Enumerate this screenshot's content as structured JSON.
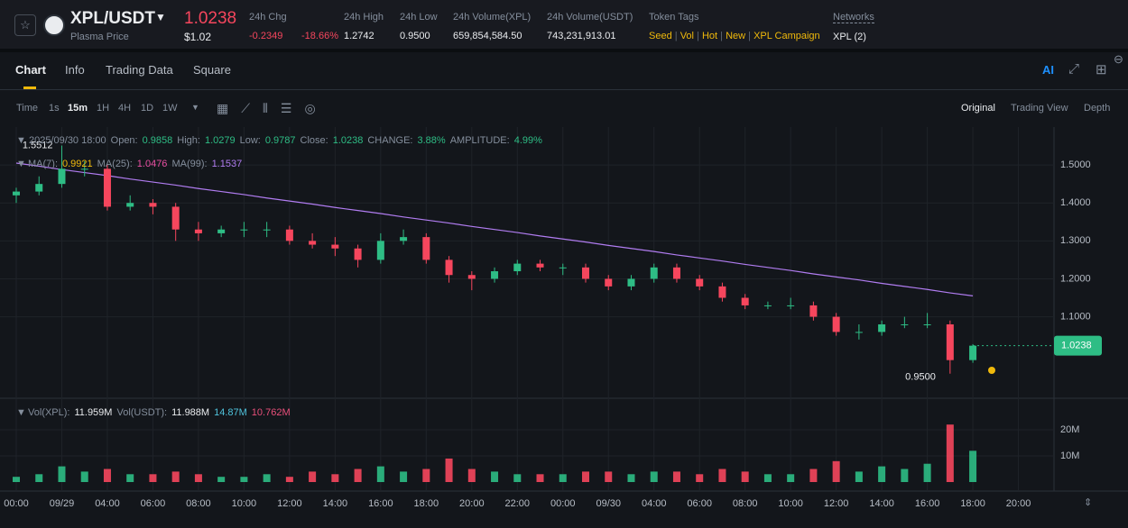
{
  "header": {
    "symbol": "XPL/USDT",
    "price": "1.0238",
    "subtitle": "Plasma Price",
    "usd_price": "$1.02",
    "stats": [
      {
        "label": "24h Chg",
        "values": [
          "-0.2349",
          "-18.66%"
        ]
      },
      {
        "label": "24h High",
        "values": [
          "1.2742"
        ]
      },
      {
        "label": "24h Low",
        "values": [
          "0.9500"
        ]
      },
      {
        "label": "24h Volume(XPL)",
        "values": [
          "659,854,584.50"
        ]
      },
      {
        "label": "24h Volume(USDT)",
        "values": [
          "743,231,913.01"
        ]
      }
    ],
    "token_tags_label": "Token Tags",
    "token_tags": [
      "Seed",
      "Vol",
      "Hot",
      "New",
      "XPL Campaign"
    ],
    "networks_label": "Networks",
    "networks": "XPL (2)"
  },
  "tabs": [
    "Chart",
    "Info",
    "Trading Data",
    "Square"
  ],
  "intervals": [
    "Time",
    "1s",
    "15m",
    "1H",
    "4H",
    "1D",
    "1W"
  ],
  "views": [
    "Original",
    "Trading View",
    "Depth"
  ],
  "chart_data": {
    "type": "candlestick",
    "info": {
      "date": "2025/09/30 18:00",
      "fields": [
        {
          "label": "Open:",
          "value": "0.9858"
        },
        {
          "label": "High:",
          "value": "1.0279"
        },
        {
          "label": "Low:",
          "value": "0.9787"
        },
        {
          "label": "Close:",
          "value": "1.0238"
        },
        {
          "label": "CHANGE:",
          "value": "3.88%"
        },
        {
          "label": "AMPLITUDE:",
          "value": "4.99%"
        }
      ]
    },
    "ma_legend": [
      {
        "label": "MA(7):",
        "value": "0.9921"
      },
      {
        "label": "MA(25):",
        "value": "1.0476"
      },
      {
        "label": "MA(99):",
        "value": "1.1537"
      }
    ],
    "volume_legend": [
      {
        "label": "Vol(XPL):",
        "value": "11.959M"
      },
      {
        "label": "Vol(USDT):",
        "value": "11.988M"
      },
      {
        "value": "14.87M"
      },
      {
        "value": "10.762M"
      }
    ],
    "x_labels": [
      "00:00",
      "09/29",
      "04:00",
      "06:00",
      "08:00",
      "10:00",
      "12:00",
      "14:00",
      "16:00",
      "18:00",
      "20:00",
      "22:00",
      "00:00",
      "09/30",
      "04:00",
      "06:00",
      "08:00",
      "10:00",
      "12:00",
      "14:00",
      "16:00",
      "18:00",
      "20:00"
    ],
    "open": [
      1.42,
      1.43,
      1.45,
      1.49,
      1.49,
      1.39,
      1.4,
      1.39,
      1.33,
      1.32,
      1.33,
      1.33,
      1.33,
      1.3,
      1.29,
      1.28,
      1.25,
      1.3,
      1.31,
      1.25,
      1.21,
      1.2,
      1.22,
      1.24,
      1.23,
      1.23,
      1.2,
      1.18,
      1.2,
      1.23,
      1.2,
      1.18,
      1.15,
      1.13,
      1.13,
      1.13,
      1.1,
      1.06,
      1.06,
      1.08,
      1.08,
      1.08,
      0.9858
    ],
    "high": [
      1.44,
      1.47,
      1.5512,
      1.51,
      1.5,
      1.42,
      1.41,
      1.4,
      1.35,
      1.34,
      1.35,
      1.35,
      1.34,
      1.32,
      1.31,
      1.29,
      1.32,
      1.33,
      1.32,
      1.26,
      1.22,
      1.23,
      1.25,
      1.25,
      1.24,
      1.24,
      1.21,
      1.21,
      1.24,
      1.24,
      1.21,
      1.19,
      1.16,
      1.14,
      1.15,
      1.14,
      1.11,
      1.08,
      1.09,
      1.1,
      1.11,
      1.09,
      1.0279
    ],
    "low": [
      1.4,
      1.42,
      1.44,
      1.47,
      1.38,
      1.38,
      1.37,
      1.3,
      1.3,
      1.31,
      1.31,
      1.31,
      1.29,
      1.28,
      1.26,
      1.23,
      1.24,
      1.29,
      1.24,
      1.19,
      1.17,
      1.19,
      1.21,
      1.22,
      1.21,
      1.19,
      1.17,
      1.17,
      1.19,
      1.19,
      1.17,
      1.14,
      1.12,
      1.12,
      1.12,
      1.09,
      1.05,
      1.04,
      1.05,
      1.07,
      1.07,
      0.95,
      0.9787
    ],
    "close": [
      1.43,
      1.45,
      1.49,
      1.49,
      1.39,
      1.4,
      1.39,
      1.33,
      1.32,
      1.33,
      1.33,
      1.33,
      1.3,
      1.29,
      1.28,
      1.25,
      1.3,
      1.31,
      1.25,
      1.21,
      1.2,
      1.22,
      1.24,
      1.23,
      1.23,
      1.2,
      1.18,
      1.2,
      1.23,
      1.2,
      1.18,
      1.15,
      1.13,
      1.13,
      1.13,
      1.1,
      1.06,
      1.06,
      1.08,
      1.08,
      1.08,
      0.9858,
      1.0238
    ],
    "volume": [
      2,
      3,
      6,
      4,
      5,
      3,
      3,
      4,
      3,
      2,
      2,
      3,
      2,
      4,
      3,
      5,
      6,
      4,
      5,
      9,
      5,
      4,
      3,
      3,
      3,
      4,
      4,
      3,
      4,
      4,
      3,
      5,
      4,
      3,
      3,
      5,
      8,
      4,
      6,
      5,
      7,
      22,
      11.959
    ],
    "ma99": [
      1.505,
      1.497,
      1.488,
      1.48,
      1.472,
      1.463,
      1.455,
      1.447,
      1.438,
      1.43,
      1.422,
      1.413,
      1.405,
      1.397,
      1.388,
      1.38,
      1.372,
      1.363,
      1.355,
      1.347,
      1.338,
      1.33,
      1.322,
      1.313,
      1.305,
      1.297,
      1.288,
      1.28,
      1.272,
      1.263,
      1.255,
      1.247,
      1.238,
      1.23,
      1.222,
      1.213,
      1.205,
      1.197,
      1.188,
      1.18,
      1.172,
      1.163,
      1.155
    ],
    "ylim": [
      0.89,
      1.6
    ],
    "yticks": [
      {
        "value": 1.1,
        "label": "1.1000"
      },
      {
        "value": 1.2,
        "label": "1.2000"
      },
      {
        "value": 1.3,
        "label": "1.3000"
      },
      {
        "value": 1.4,
        "label": "1.4000"
      },
      {
        "value": 1.5,
        "label": "1.5000"
      }
    ],
    "vol_ylim": [
      0,
      30
    ],
    "vol_yticks": [
      {
        "value": 10,
        "label": "10M"
      },
      {
        "value": 20,
        "label": "20M"
      }
    ],
    "low_label": "0.9500",
    "up_color": "#2ebd85",
    "down_color": "#f6465d",
    "ma99_color": "#b07cf0",
    "grid": true
  }
}
